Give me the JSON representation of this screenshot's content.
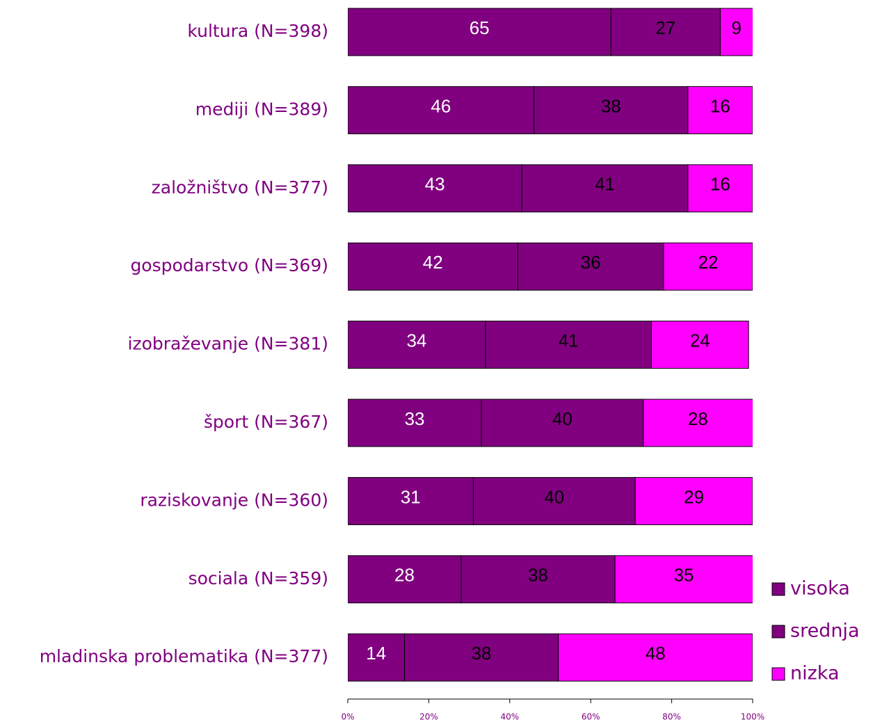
{
  "chart_data": {
    "type": "stacked_bar_horizontal",
    "categories": [
      "kultura (N=398)",
      "mediji (N=389)",
      "založništvo (N=377)",
      "gospodarstvo (N=369)",
      "izobraževanje (N=381)",
      "šport (N=367)",
      "raziskovanje (N=360)",
      "sociala (N=359)",
      "mladinska problematika (N=377)"
    ],
    "series": [
      {
        "name": "visoka",
        "color": "#800080",
        "values": [
          65,
          46,
          43,
          42,
          34,
          33,
          31,
          28,
          14
        ]
      },
      {
        "name": "srednja",
        "color": "#800080",
        "values": [
          27,
          38,
          41,
          36,
          41,
          40,
          40,
          38,
          38
        ]
      },
      {
        "name": "nizka",
        "color": "#ff00ff",
        "values": [
          9,
          16,
          16,
          22,
          24,
          28,
          29,
          35,
          48
        ]
      }
    ],
    "xlim": [
      0,
      100
    ],
    "xticks": [
      {
        "value": 0,
        "label": "0%"
      },
      {
        "value": 20,
        "label": "20%"
      },
      {
        "value": 40,
        "label": "40%"
      },
      {
        "value": 60,
        "label": "60%"
      },
      {
        "value": 80,
        "label": "80%"
      },
      {
        "value": 100,
        "label": "100%"
      }
    ],
    "legend": "right"
  }
}
